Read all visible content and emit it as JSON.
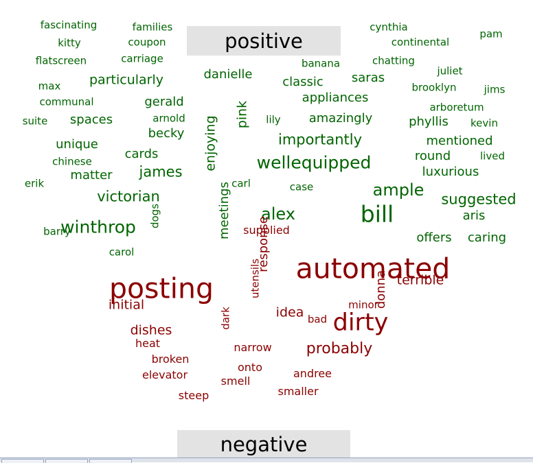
{
  "chart_data": {
    "type": "wordcloud",
    "groups": [
      {
        "name": "positive",
        "color": "#006400"
      },
      {
        "name": "negative",
        "color": "#8b0000"
      }
    ],
    "words": [
      {
        "text": "fascinating",
        "group": "positive",
        "size": 15
      },
      {
        "text": "families",
        "group": "positive",
        "size": 15
      },
      {
        "text": "kitty",
        "group": "positive",
        "size": 15
      },
      {
        "text": "coupon",
        "group": "positive",
        "size": 15
      },
      {
        "text": "cynthia",
        "group": "positive",
        "size": 15
      },
      {
        "text": "pam",
        "group": "positive",
        "size": 15
      },
      {
        "text": "continental",
        "group": "positive",
        "size": 15
      },
      {
        "text": "flatscreen",
        "group": "positive",
        "size": 15
      },
      {
        "text": "carriage",
        "group": "positive",
        "size": 15
      },
      {
        "text": "banana",
        "group": "positive",
        "size": 15
      },
      {
        "text": "chatting",
        "group": "positive",
        "size": 15
      },
      {
        "text": "juliet",
        "group": "positive",
        "size": 15
      },
      {
        "text": "danielle",
        "group": "positive",
        "size": 18
      },
      {
        "text": "particularly",
        "group": "positive",
        "size": 19
      },
      {
        "text": "max",
        "group": "positive",
        "size": 15
      },
      {
        "text": "classic",
        "group": "positive",
        "size": 18
      },
      {
        "text": "saras",
        "group": "positive",
        "size": 18
      },
      {
        "text": "brooklyn",
        "group": "positive",
        "size": 15
      },
      {
        "text": "jims",
        "group": "positive",
        "size": 15
      },
      {
        "text": "appliances",
        "group": "positive",
        "size": 18
      },
      {
        "text": "communal",
        "group": "positive",
        "size": 15
      },
      {
        "text": "gerald",
        "group": "positive",
        "size": 18
      },
      {
        "text": "pink",
        "group": "positive",
        "size": 19,
        "rotate": true
      },
      {
        "text": "arboretum",
        "group": "positive",
        "size": 15
      },
      {
        "text": "suite",
        "group": "positive",
        "size": 15
      },
      {
        "text": "spaces",
        "group": "positive",
        "size": 18
      },
      {
        "text": "arnold",
        "group": "positive",
        "size": 15
      },
      {
        "text": "lily",
        "group": "positive",
        "size": 15
      },
      {
        "text": "amazingly",
        "group": "positive",
        "size": 18
      },
      {
        "text": "phyllis",
        "group": "positive",
        "size": 18
      },
      {
        "text": "kevin",
        "group": "positive",
        "size": 15
      },
      {
        "text": "enjoying",
        "group": "positive",
        "size": 19,
        "rotate": true
      },
      {
        "text": "becky",
        "group": "positive",
        "size": 18
      },
      {
        "text": "importantly",
        "group": "positive",
        "size": 21
      },
      {
        "text": "mentioned",
        "group": "positive",
        "size": 18
      },
      {
        "text": "unique",
        "group": "positive",
        "size": 18
      },
      {
        "text": "cards",
        "group": "positive",
        "size": 18
      },
      {
        "text": "round",
        "group": "positive",
        "size": 18
      },
      {
        "text": "lived",
        "group": "positive",
        "size": 15
      },
      {
        "text": "chinese",
        "group": "positive",
        "size": 15
      },
      {
        "text": "wellequipped",
        "group": "positive",
        "size": 25
      },
      {
        "text": "luxurious",
        "group": "positive",
        "size": 18
      },
      {
        "text": "james",
        "group": "positive",
        "size": 21
      },
      {
        "text": "matter",
        "group": "positive",
        "size": 18
      },
      {
        "text": "erik",
        "group": "positive",
        "size": 15
      },
      {
        "text": "carl",
        "group": "positive",
        "size": 15
      },
      {
        "text": "case",
        "group": "positive",
        "size": 15
      },
      {
        "text": "ample",
        "group": "positive",
        "size": 24
      },
      {
        "text": "victorian",
        "group": "positive",
        "size": 21
      },
      {
        "text": "suggested",
        "group": "positive",
        "size": 21
      },
      {
        "text": "barry",
        "group": "positive",
        "size": 15
      },
      {
        "text": "meetings",
        "group": "positive",
        "size": 18,
        "rotate": true
      },
      {
        "text": "alex",
        "group": "positive",
        "size": 24
      },
      {
        "text": "bill",
        "group": "positive",
        "size": 33
      },
      {
        "text": "winthrop",
        "group": "positive",
        "size": 25
      },
      {
        "text": "dogs",
        "group": "positive",
        "size": 15,
        "rotate": true
      },
      {
        "text": "aris",
        "group": "positive",
        "size": 18
      },
      {
        "text": "offers",
        "group": "positive",
        "size": 18
      },
      {
        "text": "caring",
        "group": "positive",
        "size": 18
      },
      {
        "text": "carol",
        "group": "positive",
        "size": 15
      },
      {
        "text": "response",
        "group": "negative",
        "size": 18,
        "rotate": true
      },
      {
        "text": "automated",
        "group": "negative",
        "size": 41
      },
      {
        "text": "terrible",
        "group": "negative",
        "size": 19
      },
      {
        "text": "utensils",
        "group": "negative",
        "size": 15,
        "rotate": true
      },
      {
        "text": "posting",
        "group": "negative",
        "size": 41
      },
      {
        "text": "donna",
        "group": "negative",
        "size": 18,
        "rotate": true
      },
      {
        "text": "initial",
        "group": "negative",
        "size": 19
      },
      {
        "text": "minor",
        "group": "negative",
        "size": 15
      },
      {
        "text": "idea",
        "group": "negative",
        "size": 19
      },
      {
        "text": "bad",
        "group": "negative",
        "size": 15
      },
      {
        "text": "dark",
        "group": "negative",
        "size": 15,
        "rotate": true
      },
      {
        "text": "dirty",
        "group": "negative",
        "size": 35
      },
      {
        "text": "dishes",
        "group": "negative",
        "size": 19
      },
      {
        "text": "heat",
        "group": "negative",
        "size": 16
      },
      {
        "text": "narrow",
        "group": "negative",
        "size": 16
      },
      {
        "text": "probably",
        "group": "negative",
        "size": 22
      },
      {
        "text": "broken",
        "group": "negative",
        "size": 16
      },
      {
        "text": "onto",
        "group": "negative",
        "size": 16
      },
      {
        "text": "andree",
        "group": "negative",
        "size": 16
      },
      {
        "text": "elevator",
        "group": "negative",
        "size": 16
      },
      {
        "text": "smell",
        "group": "negative",
        "size": 16
      },
      {
        "text": "smaller",
        "group": "negative",
        "size": 16
      },
      {
        "text": "steep",
        "group": "negative",
        "size": 16
      },
      {
        "text": "supplied",
        "group": "negative",
        "size": 16
      }
    ]
  }
}
